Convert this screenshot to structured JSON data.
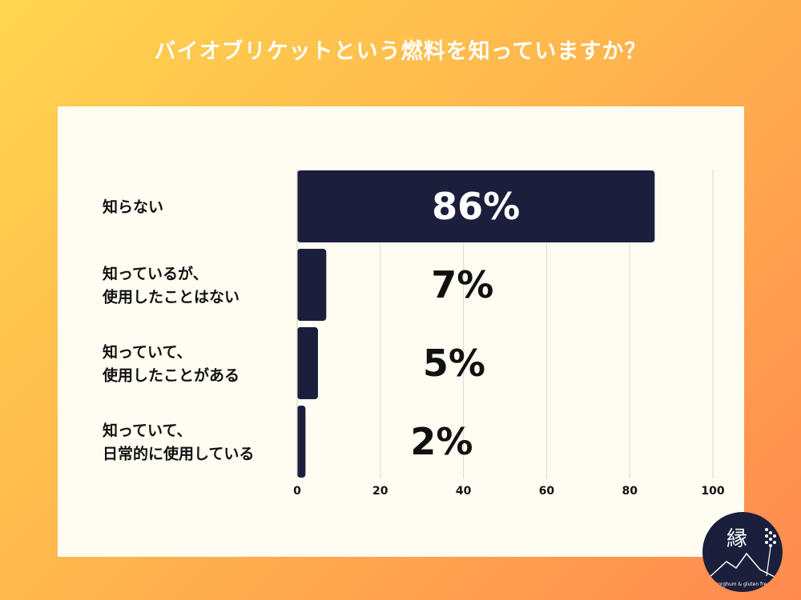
{
  "header": {
    "title": "バイオブリケットという燃料を知っていますか？"
  },
  "chart_data": {
    "type": "bar",
    "orientation": "horizontal",
    "categories": [
      [
        "知らない"
      ],
      [
        "知っているが、",
        "使用したことはない"
      ],
      [
        "知っていて、",
        "使用したことがある"
      ],
      [
        "知っていて、",
        "日常的に使用している"
      ]
    ],
    "values": [
      86,
      7,
      5,
      2
    ],
    "data_labels": [
      "86%",
      "7%",
      "5%",
      "2%"
    ],
    "x_ticks": [
      "0",
      "20",
      "40",
      "60",
      "80",
      "100"
    ],
    "xlim": [
      0,
      100
    ],
    "grid": true,
    "bar_color": "#1b1f3b"
  },
  "logo": {
    "text": "縁",
    "subtext": "sorghum & gluten free"
  },
  "colors": {
    "bar": "#1b1f3b",
    "panel": "#fffdf2"
  }
}
